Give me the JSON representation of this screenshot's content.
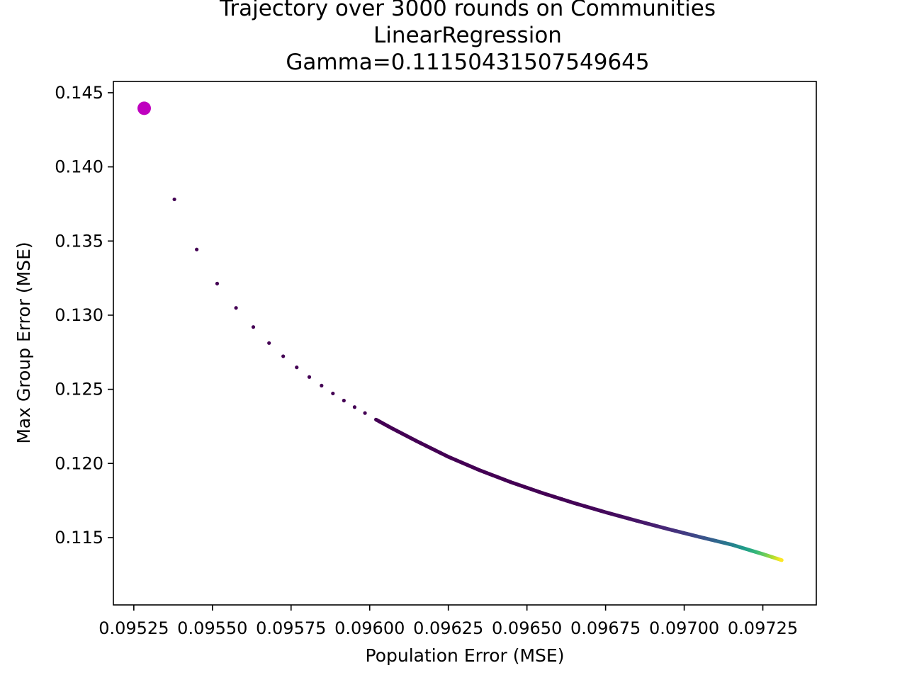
{
  "chart_data": {
    "type": "scatter",
    "title": [
      "Trajectory over 3000 rounds on Communities",
      "LinearRegression",
      "Gamma=0.11150431507549645"
    ],
    "xlabel": "Population Error (MSE)",
    "ylabel": "Max Group Error (MSE)",
    "xlim": [
      0.095185,
      0.09742
    ],
    "ylim": [
      0.11046,
      0.14576
    ],
    "xticks": [
      0.09525,
      0.0955,
      0.09575,
      0.096,
      0.09625,
      0.0965,
      0.09675,
      0.097,
      0.09725
    ],
    "xtick_labels": [
      "0.09525",
      "0.09550",
      "0.09575",
      "0.09600",
      "0.09625",
      "0.09650",
      "0.09675",
      "0.09700",
      "0.09725"
    ],
    "yticks": [
      0.115,
      0.12,
      0.125,
      0.13,
      0.135,
      0.14,
      0.145
    ],
    "ytick_labels": [
      "0.115",
      "0.120",
      "0.125",
      "0.130",
      "0.135",
      "0.140",
      "0.145"
    ],
    "grid": false,
    "colormap": "viridis",
    "highlight_point": {
      "x": 0.095283,
      "y": 0.14395,
      "color": "#bf00bf"
    },
    "trajectory": {
      "rounds": 3000,
      "x": [
        0.095379,
        0.09545,
        0.095515,
        0.095575,
        0.09563,
        0.09568,
        0.095725,
        0.095768,
        0.095808,
        0.095847,
        0.095883,
        0.095918,
        0.095952,
        0.095985,
        0.09602,
        0.09607,
        0.09615,
        0.09625,
        0.09635,
        0.09645,
        0.09655,
        0.09665,
        0.09675,
        0.09685,
        0.09695,
        0.09705,
        0.09715,
        0.09725,
        0.09731
      ],
      "y": [
        0.13781,
        0.13443,
        0.13213,
        0.13049,
        0.1292,
        0.12812,
        0.12723,
        0.12648,
        0.12583,
        0.12525,
        0.12472,
        0.12424,
        0.1238,
        0.1234,
        0.12296,
        0.12238,
        0.1215,
        0.12045,
        0.11954,
        0.11873,
        0.118,
        0.11733,
        0.11671,
        0.11613,
        0.11557,
        0.11504,
        0.11453,
        0.11389,
        0.11348
      ]
    }
  }
}
